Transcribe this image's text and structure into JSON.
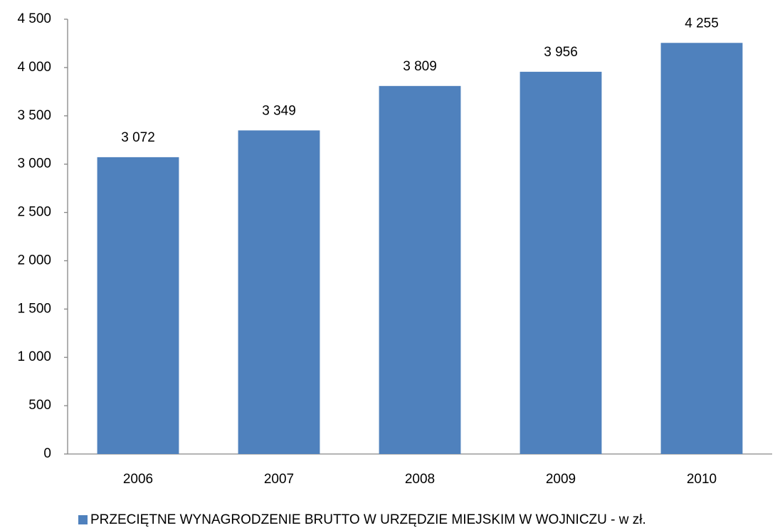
{
  "chart_data": {
    "type": "bar",
    "categories": [
      "2006",
      "2007",
      "2008",
      "2009",
      "2010"
    ],
    "series": [
      {
        "name": "PRZECIĘTNE WYNAGRODZENIE BRUTTO W URZĘDZIE MIEJSKIM W WOJNICZU - w zł.",
        "color": "#4f81bd",
        "values": [
          3072,
          3349,
          3809,
          3956,
          4255
        ],
        "value_labels": [
          "3 072",
          "3 349",
          "3 809",
          "3 956",
          "4 255"
        ]
      }
    ],
    "ylim": [
      0,
      4500
    ],
    "yticks": [
      0,
      500,
      {
        "value": 1000,
        "label": "1 000"
      },
      {
        "value": 1500,
        "label": "1 500"
      },
      {
        "value": 2000,
        "label": "2 000"
      },
      {
        "value": 2500,
        "label": "2 500"
      },
      {
        "value": 3000,
        "label": "3 000"
      },
      {
        "value": 3500,
        "label": "3 500"
      },
      {
        "value": 4000,
        "label": "4 000"
      },
      {
        "value": 4500,
        "label": "4 500"
      }
    ],
    "grid": false,
    "legend": "bottom"
  }
}
